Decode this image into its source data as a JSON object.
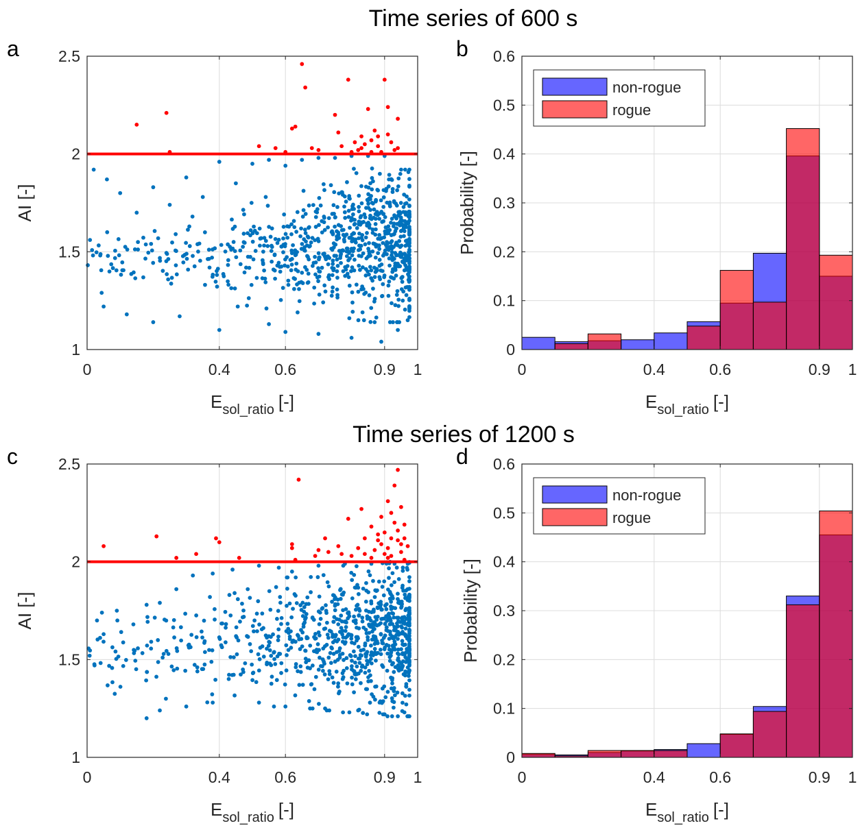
{
  "colors": {
    "scatter_nonrogue": "#0072BD",
    "scatter_rogue": "#FF0000",
    "threshold_line": "#FF0000",
    "hist_nonrogue": "#0000FF",
    "hist_rogue": "#FF0000",
    "grid": "#DCDCDC"
  },
  "titles": [
    "Time series of 600 s",
    "Time series of 1200 s"
  ],
  "chart_data": [
    {
      "panel": "a",
      "type": "scatter",
      "xlabel_main": "E",
      "xlabel_sub": "sol_ratio",
      "xlabel_unit": "[-]",
      "ylabel": "AI [-]",
      "xlim": [
        0,
        1
      ],
      "ylim": [
        1,
        2.5
      ],
      "xticks": [
        0,
        0.4,
        0.6,
        0.9,
        1
      ],
      "xtick_labels": [
        "0",
        "0.4",
        "0.6",
        "0.9",
        "1"
      ],
      "yticks": [
        1,
        1.5,
        2,
        2.5
      ],
      "ytick_labels": [
        "1",
        "1.5",
        "2",
        "2.5"
      ],
      "grid": true,
      "threshold": 2,
      "series": [
        {
          "role": "non-rogue",
          "points": [
            [
              0.02,
              1.92
            ],
            [
              0.06,
              1.87
            ],
            [
              0.1,
              1.8
            ],
            [
              0.15,
              1.7
            ],
            [
              0.2,
              1.83
            ],
            [
              0.25,
              1.74
            ],
            [
              0.3,
              1.88
            ],
            [
              0.35,
              1.78
            ],
            [
              0.4,
              1.96
            ],
            [
              0.45,
              1.85
            ],
            [
              0.5,
              1.95
            ],
            [
              0.55,
              1.97
            ],
            [
              0.6,
              1.94
            ],
            [
              0.65,
              1.97
            ],
            [
              0.7,
              1.98
            ],
            [
              0.75,
              1.98
            ],
            [
              0.8,
              1.99
            ],
            [
              0.85,
              1.99
            ],
            [
              0.9,
              1.99
            ],
            [
              0.95,
              1.92
            ],
            [
              0.05,
              1.22
            ],
            [
              0.12,
              1.18
            ],
            [
              0.2,
              1.14
            ],
            [
              0.28,
              1.17
            ],
            [
              0.4,
              1.1
            ],
            [
              0.55,
              1.13
            ],
            [
              0.6,
              1.09
            ],
            [
              0.7,
              1.08
            ],
            [
              0.8,
              1.06
            ],
            [
              0.89,
              1.04
            ],
            [
              0.94,
              1.1
            ]
          ],
          "cloud": [
            [
              0.0,
              1.68,
              1.32
            ],
            [
              0.05,
              1.58,
              1.32
            ],
            [
              0.1,
              1.6,
              1.3
            ],
            [
              0.15,
              1.62,
              1.3
            ],
            [
              0.2,
              1.64,
              1.29
            ],
            [
              0.25,
              1.64,
              1.28
            ],
            [
              0.3,
              1.66,
              1.27
            ],
            [
              0.35,
              1.68,
              1.26
            ],
            [
              0.4,
              1.7,
              1.25
            ],
            [
              0.45,
              1.73,
              1.25
            ],
            [
              0.5,
              1.76,
              1.24
            ],
            [
              0.55,
              1.78,
              1.24
            ],
            [
              0.6,
              1.8,
              1.22
            ],
            [
              0.65,
              1.82,
              1.21
            ],
            [
              0.7,
              1.86,
              1.2
            ],
            [
              0.75,
              1.88,
              1.19
            ],
            [
              0.8,
              1.92,
              1.18
            ],
            [
              0.85,
              1.94,
              1.17
            ],
            [
              0.9,
              1.95,
              1.17
            ],
            [
              0.95,
              1.9,
              1.18
            ]
          ]
        },
        {
          "role": "rogue",
          "points": [
            [
              0.15,
              2.15
            ],
            [
              0.24,
              2.21
            ],
            [
              0.25,
              2.01
            ],
            [
              0.52,
              2.04
            ],
            [
              0.57,
              2.03
            ],
            [
              0.6,
              2.01
            ],
            [
              0.62,
              2.13
            ],
            [
              0.63,
              2.14
            ],
            [
              0.65,
              2.46
            ],
            [
              0.66,
              2.34
            ],
            [
              0.68,
              2.03
            ],
            [
              0.7,
              2.02
            ],
            [
              0.75,
              2.2
            ],
            [
              0.76,
              2.11
            ],
            [
              0.77,
              2.04
            ],
            [
              0.79,
              2.38
            ],
            [
              0.81,
              2.06
            ],
            [
              0.82,
              2.02
            ],
            [
              0.83,
              2.09
            ],
            [
              0.84,
              2.05
            ],
            [
              0.85,
              2.23
            ],
            [
              0.86,
              2.01
            ],
            [
              0.87,
              2.12
            ],
            [
              0.88,
              2.09
            ],
            [
              0.89,
              2.01
            ],
            [
              0.9,
              2.38
            ],
            [
              0.91,
              2.24
            ],
            [
              0.92,
              2.06
            ],
            [
              0.93,
              2.02
            ],
            [
              0.94,
              2.18
            ],
            [
              0.94,
              2.03
            ],
            [
              0.86,
              2.07
            ],
            [
              0.83,
              2.03
            ],
            [
              0.8,
              2.01
            ],
            [
              0.88,
              2.04
            ],
            [
              0.91,
              2.1
            ]
          ]
        }
      ]
    },
    {
      "panel": "b",
      "type": "bar",
      "xlabel_main": "E",
      "xlabel_sub": "sol_ratio",
      "xlabel_unit": "[-]",
      "ylabel": "Probability [-]",
      "xlim": [
        0,
        1
      ],
      "ylim": [
        0,
        0.6
      ],
      "xticks": [
        0,
        0.4,
        0.6,
        0.9,
        1
      ],
      "xtick_labels": [
        "0",
        "0.4",
        "0.6",
        "0.9",
        "1"
      ],
      "yticks": [
        0,
        0.1,
        0.2,
        0.3,
        0.4,
        0.5,
        0.6
      ],
      "ytick_labels": [
        "0",
        "0.1",
        "0.2",
        "0.3",
        "0.4",
        "0.5",
        "0.6"
      ],
      "grid": true,
      "legend_position": "top-left",
      "bin_edges": [
        0,
        0.1,
        0.2,
        0.3,
        0.4,
        0.5,
        0.6,
        0.7,
        0.8,
        0.9,
        1.0
      ],
      "series": [
        {
          "name": "non-rogue",
          "values": [
            0.025,
            0.016,
            0.018,
            0.02,
            0.034,
            0.057,
            0.095,
            0.197,
            0.396,
            0.15
          ]
        },
        {
          "name": "rogue",
          "values": [
            0.0,
            0.012,
            0.032,
            0.0,
            0.0,
            0.048,
            0.162,
            0.097,
            0.452,
            0.193
          ]
        }
      ]
    },
    {
      "panel": "c",
      "type": "scatter",
      "xlabel_main": "E",
      "xlabel_sub": "sol_ratio",
      "xlabel_unit": "[-]",
      "ylabel": "AI [-]",
      "xlim": [
        0,
        1
      ],
      "ylim": [
        1,
        2.5
      ],
      "xticks": [
        0,
        0.4,
        0.6,
        0.9,
        1
      ],
      "xtick_labels": [
        "0",
        "0.4",
        "0.6",
        "0.9",
        "1"
      ],
      "yticks": [
        1,
        1.5,
        2,
        2.5
      ],
      "ytick_labels": [
        "1",
        "1.5",
        "2",
        "2.5"
      ],
      "grid": true,
      "threshold": 2,
      "series": [
        {
          "role": "non-rogue",
          "points": [
            [
              0.03,
              1.7
            ],
            [
              0.05,
              1.63
            ],
            [
              0.09,
              1.75
            ],
            [
              0.14,
              1.68
            ],
            [
              0.18,
              1.78
            ],
            [
              0.22,
              1.79
            ],
            [
              0.27,
              1.86
            ],
            [
              0.32,
              1.93
            ],
            [
              0.38,
              1.94
            ],
            [
              0.44,
              1.96
            ],
            [
              0.52,
              1.98
            ],
            [
              0.58,
              1.97
            ],
            [
              0.62,
              1.95
            ],
            [
              0.7,
              1.98
            ],
            [
              0.78,
              1.99
            ],
            [
              0.86,
              1.99
            ],
            [
              0.93,
              1.99
            ],
            [
              0.97,
              1.99
            ],
            [
              0.18,
              1.2
            ],
            [
              0.22,
              1.24
            ],
            [
              0.3,
              1.26
            ],
            [
              0.38,
              1.28
            ],
            [
              0.52,
              1.28
            ],
            [
              0.6,
              1.26
            ],
            [
              0.72,
              1.25
            ],
            [
              0.82,
              1.24
            ],
            [
              0.9,
              1.22
            ],
            [
              0.94,
              1.21
            ],
            [
              0.96,
              1.23
            ]
          ],
          "cloud": [
            [
              0.0,
              1.72,
              1.36
            ],
            [
              0.05,
              1.68,
              1.32
            ],
            [
              0.1,
              1.7,
              1.32
            ],
            [
              0.15,
              1.72,
              1.32
            ],
            [
              0.2,
              1.75,
              1.31
            ],
            [
              0.25,
              1.76,
              1.31
            ],
            [
              0.3,
              1.78,
              1.31
            ],
            [
              0.35,
              1.8,
              1.3
            ],
            [
              0.4,
              1.82,
              1.3
            ],
            [
              0.45,
              1.84,
              1.3
            ],
            [
              0.5,
              1.86,
              1.3
            ],
            [
              0.55,
              1.88,
              1.29
            ],
            [
              0.6,
              1.9,
              1.28
            ],
            [
              0.65,
              1.92,
              1.28
            ],
            [
              0.7,
              1.95,
              1.27
            ],
            [
              0.75,
              1.96,
              1.26
            ],
            [
              0.8,
              1.97,
              1.25
            ],
            [
              0.85,
              1.98,
              1.25
            ],
            [
              0.9,
              1.99,
              1.24
            ],
            [
              0.95,
              1.99,
              1.24
            ]
          ]
        },
        {
          "role": "rogue",
          "points": [
            [
              0.05,
              2.08
            ],
            [
              0.21,
              2.13
            ],
            [
              0.27,
              2.02
            ],
            [
              0.33,
              2.04
            ],
            [
              0.39,
              2.12
            ],
            [
              0.4,
              2.1
            ],
            [
              0.46,
              2.02
            ],
            [
              0.62,
              2.09
            ],
            [
              0.62,
              2.07
            ],
            [
              0.63,
              2.01
            ],
            [
              0.64,
              2.42
            ],
            [
              0.69,
              2.03
            ],
            [
              0.7,
              2.06
            ],
            [
              0.72,
              2.12
            ],
            [
              0.73,
              2.05
            ],
            [
              0.76,
              2.08
            ],
            [
              0.77,
              2.04
            ],
            [
              0.79,
              2.22
            ],
            [
              0.8,
              2.03
            ],
            [
              0.82,
              2.07
            ],
            [
              0.83,
              2.27
            ],
            [
              0.84,
              2.12
            ],
            [
              0.86,
              2.18
            ],
            [
              0.87,
              2.06
            ],
            [
              0.88,
              2.11
            ],
            [
              0.89,
              2.23
            ],
            [
              0.9,
              2.15
            ],
            [
              0.91,
              2.31
            ],
            [
              0.91,
              2.07
            ],
            [
              0.92,
              2.25
            ],
            [
              0.92,
              2.03
            ],
            [
              0.93,
              2.39
            ],
            [
              0.94,
              2.47
            ],
            [
              0.94,
              2.11
            ],
            [
              0.95,
              2.28
            ],
            [
              0.95,
              2.05
            ],
            [
              0.96,
              2.19
            ],
            [
              0.96,
              2.01
            ],
            [
              0.97,
              2.08
            ],
            [
              0.94,
              2.16
            ],
            [
              0.91,
              2.02
            ],
            [
              0.89,
              2.09
            ],
            [
              0.86,
              2.02
            ],
            [
              0.93,
              2.2
            ],
            [
              0.9,
              2.04
            ],
            [
              0.96,
              2.12
            ],
            [
              0.84,
              2.04
            ],
            [
              0.88,
              2.14
            ],
            [
              0.92,
              2.12
            ],
            [
              0.95,
              2.09
            ]
          ]
        }
      ]
    },
    {
      "panel": "d",
      "type": "bar",
      "xlabel_main": "E",
      "xlabel_sub": "sol_ratio",
      "xlabel_unit": "[-]",
      "ylabel": "Probability [-]",
      "xlim": [
        0,
        1
      ],
      "ylim": [
        0,
        0.6
      ],
      "xticks": [
        0,
        0.4,
        0.6,
        0.9,
        1
      ],
      "xtick_labels": [
        "0",
        "0.4",
        "0.6",
        "0.9",
        "1"
      ],
      "yticks": [
        0,
        0.1,
        0.2,
        0.3,
        0.4,
        0.5,
        0.6
      ],
      "ytick_labels": [
        "0",
        "0.1",
        "0.2",
        "0.3",
        "0.4",
        "0.5",
        "0.6"
      ],
      "grid": true,
      "legend_position": "top-left",
      "bin_edges": [
        0,
        0.1,
        0.2,
        0.3,
        0.4,
        0.5,
        0.6,
        0.7,
        0.8,
        0.9,
        1.0
      ],
      "series": [
        {
          "name": "non-rogue",
          "values": [
            0.006,
            0.005,
            0.01,
            0.013,
            0.016,
            0.028,
            0.047,
            0.104,
            0.33,
            0.455
          ]
        },
        {
          "name": "rogue",
          "values": [
            0.008,
            0.003,
            0.014,
            0.014,
            0.014,
            0.0,
            0.048,
            0.094,
            0.312,
            0.504
          ]
        }
      ]
    }
  ]
}
